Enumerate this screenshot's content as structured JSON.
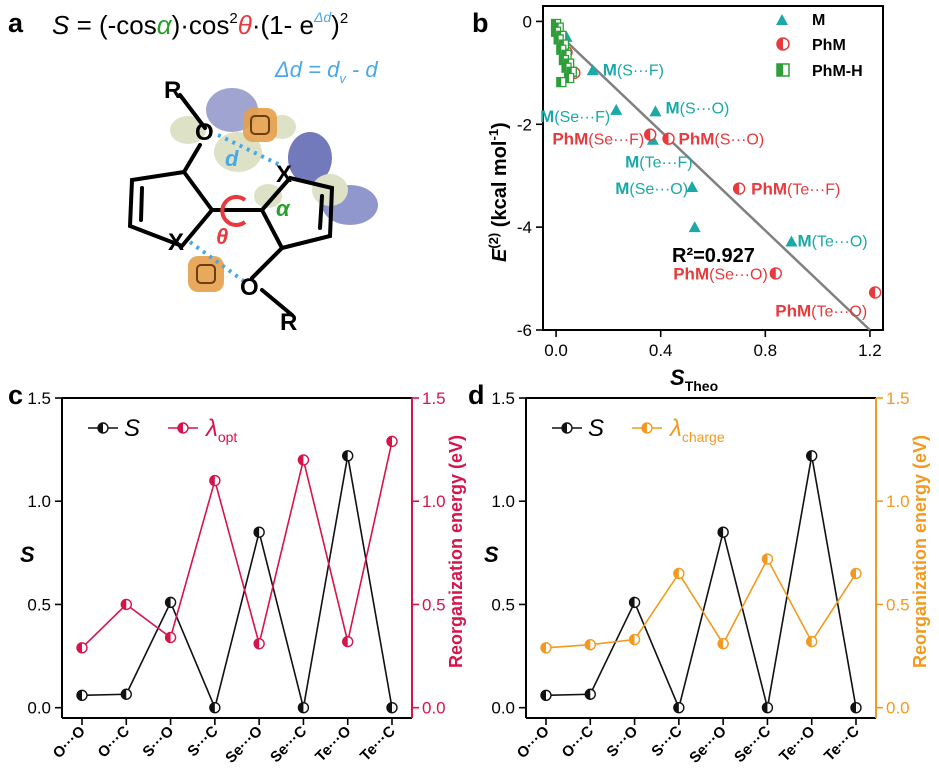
{
  "panels": {
    "a": "a",
    "b": "b",
    "c": "c",
    "d": "d"
  },
  "colors": {
    "black": "#111111",
    "teal": "#1aa8a8",
    "red": "#e8393d",
    "green": "#2e9e3a",
    "crimson": "#d6144c",
    "orange": "#f29a1f",
    "blue": "#4aa8e8",
    "molGreen": "#2aa02a"
  },
  "panel_a": {
    "formula": {
      "S": "S",
      "eq": " = (-cos",
      "alpha": "α",
      "mid1": ")·cos",
      "sup2": "2",
      "theta": "θ",
      "mid2": "·(1- e",
      "expo": "Δd",
      "end": ")",
      "sup2b": "2"
    },
    "delta": {
      "lhs": "Δd = d",
      "sub": "v",
      "rhs": " - d"
    },
    "atoms": {
      "R_top": "R",
      "O_top": "O",
      "X_right": "X",
      "X_left": "X",
      "O_bottom": "O",
      "R_bottom": "R",
      "d": "d",
      "alpha": "α",
      "theta": "θ"
    }
  },
  "chart_data": [
    {
      "panel": "b",
      "type": "scatter",
      "xlabel_main": "S",
      "xlabel_sub": "Theo",
      "ylabel_main": "E",
      "ylabel_sup": "(2)",
      "ylabel_unit": " (kcal mol",
      "ylabel_unit_sup": "-1",
      "ylabel_close": ")",
      "xlim": [
        -0.05,
        1.25
      ],
      "ylim": [
        -6,
        0.3
      ],
      "xticks": [
        0.0,
        0.4,
        0.8,
        1.2
      ],
      "xtick_labels": [
        "0.0",
        "0.4",
        "0.8",
        "1.2"
      ],
      "yticks": [
        0,
        -2,
        -4,
        -6
      ],
      "ytick_labels": [
        "0",
        "-2",
        "-4",
        "-6"
      ],
      "legend": [
        "M",
        "PhM",
        "PhM-H"
      ],
      "legend_position": "top-right",
      "annotation": "R²=0.927",
      "series": [
        {
          "name": "M",
          "marker": "triangle",
          "points": [
            {
              "x": 0.14,
              "y": -0.95,
              "label_bold": "M",
              "label_rest": "(S···F)"
            },
            {
              "x": 0.38,
              "y": -1.75,
              "label_bold": "M",
              "label_rest": "(S···O)"
            },
            {
              "x": 0.37,
              "y": -2.3,
              "label_bold": "",
              "label_rest": ""
            },
            {
              "x": 0.23,
              "y": -1.72,
              "label_bold": "M",
              "label_rest": "(Se···F)"
            },
            {
              "x": 0.52,
              "y": -3.22,
              "label_bold": "M",
              "label_rest": "(Se···O)"
            },
            {
              "x": 0.53,
              "y": -4.0,
              "label_bold": "",
              "label_rest": ""
            },
            {
              "x": 0.9,
              "y": -4.28,
              "label_bold": "M",
              "label_rest": "(Te···O)"
            },
            {
              "x": 0.04,
              "y": -0.3,
              "label_bold": "",
              "label_rest": ""
            }
          ]
        },
        {
          "name": "PhM",
          "marker": "circle",
          "points": [
            {
              "x": 0.07,
              "y": -1.0,
              "label_bold": "",
              "label_rest": ""
            },
            {
              "x": 0.04,
              "y": -0.6,
              "label_bold": "",
              "label_rest": ""
            },
            {
              "x": 0.43,
              "y": -2.28,
              "label_bold": "PhM",
              "label_rest": "(S···O)"
            },
            {
              "x": 0.36,
              "y": -2.2,
              "label_bold": "PhM",
              "label_rest": "(Se···F)"
            },
            {
              "x": 0.7,
              "y": -3.25,
              "label_bold": "PhM",
              "label_rest": "(Te···F)"
            },
            {
              "x": 0.84,
              "y": -4.9,
              "label_bold": "PhM",
              "label_rest": "(Se···O)"
            },
            {
              "x": 1.22,
              "y": -5.27,
              "label_bold": "PhM",
              "label_rest": "(Te···O)"
            }
          ],
          "teF_label_bold": "M",
          "teF_label_rest": "(Te···F)"
        },
        {
          "name": "PhM-H",
          "marker": "square",
          "points": [
            {
              "x": 0.0,
              "y": -0.05
            },
            {
              "x": 0.01,
              "y": -0.12
            },
            {
              "x": 0.0,
              "y": -0.2
            },
            {
              "x": 0.02,
              "y": -0.28
            },
            {
              "x": 0.01,
              "y": -0.35
            },
            {
              "x": 0.03,
              "y": -0.45
            },
            {
              "x": 0.02,
              "y": -0.55
            },
            {
              "x": 0.04,
              "y": -0.65
            },
            {
              "x": 0.03,
              "y": -0.75
            },
            {
              "x": 0.05,
              "y": -0.82
            },
            {
              "x": 0.04,
              "y": -0.9
            },
            {
              "x": 0.06,
              "y": -0.98
            },
            {
              "x": 0.05,
              "y": -1.1
            },
            {
              "x": 0.02,
              "y": -1.18
            }
          ]
        }
      ],
      "fit_line": {
        "x": [
          0.0,
          1.2
        ],
        "y": [
          -0.2,
          -6.0
        ]
      }
    },
    {
      "panel": "c",
      "type": "line",
      "categories": [
        "O···O",
        "O···C",
        "S···O",
        "S···C",
        "Se···O",
        "Se···C",
        "Te···O",
        "Te···C"
      ],
      "ylabel_left": "S",
      "ylabel_right": "Reorganization energy (eV)",
      "ylim": [
        -0.05,
        1.5
      ],
      "yticks": [
        0.0,
        0.5,
        1.0,
        1.5
      ],
      "ytick_labels": [
        "0.0",
        "0.5",
        "1.0",
        "1.5"
      ],
      "legend_position": "top-left",
      "series": [
        {
          "name": "S",
          "axis": "left",
          "values": [
            0.06,
            0.065,
            0.51,
            0.0,
            0.85,
            0.0,
            1.22,
            0.0
          ]
        },
        {
          "name": "λ",
          "name_sub": "opt",
          "axis": "right",
          "values": [
            0.29,
            0.5,
            0.34,
            1.1,
            0.31,
            1.2,
            0.32,
            1.29
          ]
        }
      ]
    },
    {
      "panel": "d",
      "type": "line",
      "categories": [
        "O···O",
        "O···C",
        "S···O",
        "S···C",
        "Se···O",
        "Se···C",
        "Te···O",
        "Te···C"
      ],
      "ylabel_left": "S",
      "ylabel_right": "Reorganization energy (eV)",
      "ylim": [
        -0.05,
        1.5
      ],
      "yticks": [
        0.0,
        0.5,
        1.0,
        1.5
      ],
      "ytick_labels": [
        "0.0",
        "0.5",
        "1.0",
        "1.5"
      ],
      "legend_position": "top-left",
      "series": [
        {
          "name": "S",
          "axis": "left",
          "values": [
            0.06,
            0.065,
            0.51,
            0.0,
            0.85,
            0.0,
            1.22,
            0.0
          ]
        },
        {
          "name": "λ",
          "name_sub": "charge",
          "axis": "right",
          "values": [
            0.29,
            0.305,
            0.33,
            0.65,
            0.31,
            0.72,
            0.32,
            0.65
          ]
        }
      ]
    }
  ]
}
